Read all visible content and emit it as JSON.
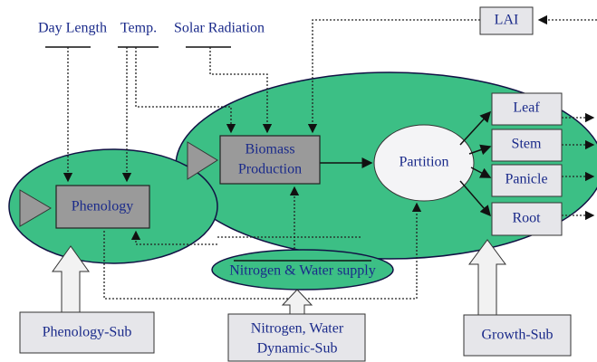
{
  "inputs": [
    "Day Length",
    "Temp.",
    "Solar Radiation"
  ],
  "nodes": {
    "lai": "LAI",
    "biomass": [
      "Biomass",
      "Production"
    ],
    "partition": "Partition",
    "organs": [
      "Leaf",
      "Stem",
      "Panicle",
      "Root"
    ],
    "phenology": "Phenology",
    "supply": "Nitrogen & Water supply"
  },
  "submodels": {
    "phenology": "Phenology-Sub",
    "nitrogen_water": [
      "Nitrogen, Water",
      "Dynamic-Sub"
    ],
    "growth": "Growth-Sub"
  }
}
